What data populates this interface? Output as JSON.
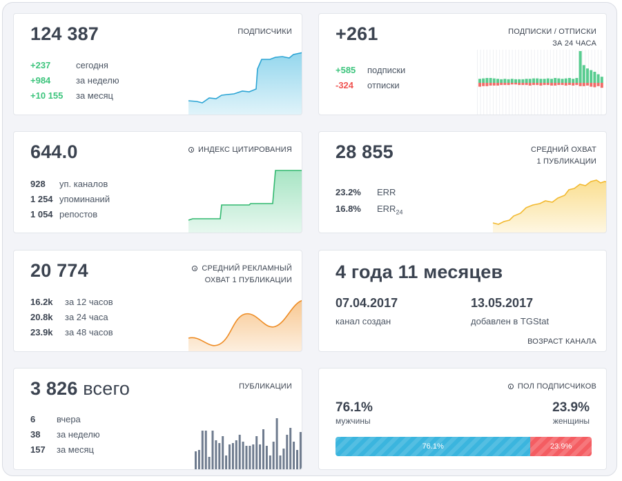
{
  "subscribers": {
    "total": "124 387",
    "label": "ПОДПИСЧИКИ",
    "stats": [
      {
        "value": "+237",
        "label": "сегодня"
      },
      {
        "value": "+984",
        "label": "за неделю"
      },
      {
        "value": "+10 155",
        "label": "за месяц"
      }
    ]
  },
  "subs_unsubs": {
    "total": "+261",
    "label_line1": "ПОДПИСКИ / ОТПИСКИ",
    "label_line2": "ЗА 24 ЧАСА",
    "stats": [
      {
        "value": "+585",
        "label": "подписки"
      },
      {
        "value": "-324",
        "label": "отписки"
      }
    ]
  },
  "citation": {
    "total": "644.0",
    "label": "ИНДЕКС ЦИТИРОВАНИЯ",
    "icon": "info-icon",
    "stats": [
      {
        "value": "928",
        "label": "уп. каналов"
      },
      {
        "value": "1 254",
        "label": "упоминаний"
      },
      {
        "value": "1 054",
        "label": "репостов"
      }
    ]
  },
  "reach": {
    "total": "28 855",
    "label_line1": "СРЕДНИЙ ОХВАТ",
    "label_line2": "1 ПУБЛИКАЦИИ",
    "stats": [
      {
        "value": "23.2%",
        "label": "ERR"
      },
      {
        "value": "16.8%",
        "label": "ERR",
        "sub": "24"
      }
    ]
  },
  "ad_reach": {
    "total": "20 774",
    "label_line1": "СРЕДНИЙ РЕКЛАМНЫЙ",
    "label_line2": "ОХВАТ 1 ПУБЛИКАЦИИ",
    "icon": "info-icon",
    "stats": [
      {
        "value": "16.2k",
        "label": "за 12 часов"
      },
      {
        "value": "20.8k",
        "label": "за 24 часа"
      },
      {
        "value": "23.9k",
        "label": "за 48 часов"
      }
    ]
  },
  "age": {
    "title": "4 года 11 месяцев",
    "created_date": "07.04.2017",
    "created_label": "канал создан",
    "added_date": "13.05.2017",
    "added_label": "добавлен в TGStat",
    "label": "ВОЗРАСТ КАНАЛА"
  },
  "publications": {
    "total": "3 826",
    "suffix": "всего",
    "label": "ПУБЛИКАЦИИ",
    "stats": [
      {
        "value": "6",
        "label": "вчера"
      },
      {
        "value": "38",
        "label": "за неделю"
      },
      {
        "value": "157",
        "label": "за месяц"
      }
    ]
  },
  "gender": {
    "label": "ПОЛ ПОДПИСЧИКОВ",
    "icon": "info-icon",
    "male_value": "76.1%",
    "male_label": "мужчины",
    "female_value": "23.9%",
    "female_label": "женщины",
    "male_fraction": 0.761,
    "female_fraction": 0.239,
    "male_bar_text": "76.1%",
    "female_bar_text": "23.9%"
  },
  "colors": {
    "blue": "#3bb5de",
    "green": "#3cc47c",
    "red": "#ef5350",
    "yellow": "#f7c948",
    "orange": "#f29b38",
    "slate": "#6e7b8e"
  }
}
